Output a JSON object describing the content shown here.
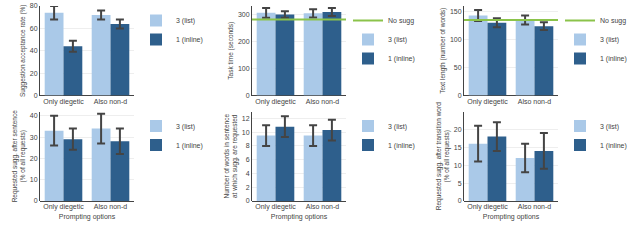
{
  "chart_data": [
    {
      "type": "bar",
      "ylabel": "Suggestion acceptance rate (%)",
      "categories": [
        "Only diegetic",
        "Also non-d"
      ],
      "series": [
        {
          "name": "3 (list)",
          "color": "#aac9e8",
          "values": [
            74,
            72
          ],
          "errors": [
            6,
            4
          ]
        },
        {
          "name": "1 (inline)",
          "color": "#2e5f8c",
          "values": [
            44,
            64
          ],
          "errors": [
            5,
            4
          ]
        }
      ],
      "ylim": [
        0,
        80
      ],
      "yticks": [
        0,
        20,
        40,
        60,
        80
      ],
      "grid": true,
      "legend": "right"
    },
    {
      "type": "bar",
      "ylabel": "Task time (seconds)",
      "categories": [
        "Only diegetic",
        "Also non-d"
      ],
      "series": [
        {
          "name": "No sugg",
          "type": "hline",
          "color": "#8bc34a",
          "value": 280
        },
        {
          "name": "3 (list)",
          "color": "#aac9e8",
          "values": [
            305,
            303
          ],
          "errors": [
            18,
            15
          ]
        },
        {
          "name": "1 (inline)",
          "color": "#2e5f8c",
          "values": [
            299,
            308
          ],
          "errors": [
            12,
            15
          ]
        }
      ],
      "ylim": [
        0,
        330
      ],
      "yticks": [
        0,
        100,
        200,
        300
      ],
      "grid": true,
      "legend": "right"
    },
    {
      "type": "bar",
      "ylabel": "Text length (number of words)",
      "categories": [
        "Only diegetic",
        "Also non-d"
      ],
      "series": [
        {
          "name": "No sugg",
          "type": "hline",
          "color": "#8bc34a",
          "value": 135
        },
        {
          "name": "3 (list)",
          "color": "#aac9e8",
          "values": [
            143,
            135
          ],
          "errors": [
            10,
            8
          ]
        },
        {
          "name": "1 (inline)",
          "color": "#2e5f8c",
          "values": [
            130,
            124
          ],
          "errors": [
            8,
            7
          ]
        }
      ],
      "ylim": [
        0,
        160
      ],
      "yticks": [
        0,
        50,
        100,
        150
      ],
      "grid": true,
      "legend": "right"
    },
    {
      "type": "bar",
      "ylabel": "Requested sugg. after sentence\n(% of all requests)",
      "xlabel": "Prompting options",
      "categories": [
        "Only diegetic",
        "Also non-d"
      ],
      "series": [
        {
          "name": "3 (list)",
          "color": "#aac9e8",
          "values": [
            33,
            34
          ],
          "errors": [
            7,
            7
          ]
        },
        {
          "name": "1 (inline)",
          "color": "#2e5f8c",
          "values": [
            29,
            28
          ],
          "errors": [
            5,
            6
          ]
        }
      ],
      "ylim": [
        0,
        42
      ],
      "yticks": [
        0,
        10,
        20,
        30,
        40
      ],
      "grid": true,
      "legend": "right"
    },
    {
      "type": "bar",
      "ylabel": "Number of words in sentence\nat which sugg. are requested",
      "xlabel": "Prompting options",
      "categories": [
        "Only diegetic",
        "Also non-d"
      ],
      "series": [
        {
          "name": "3 (list)",
          "color": "#aac9e8",
          "values": [
            9.5,
            9.5
          ],
          "errors": [
            1.5,
            1.5
          ]
        },
        {
          "name": "1 (inline)",
          "color": "#2e5f8c",
          "values": [
            10.8,
            10.3
          ],
          "errors": [
            1.5,
            1.5
          ]
        }
      ],
      "ylim": [
        0,
        13
      ],
      "yticks": [
        0,
        2,
        4,
        6,
        8,
        10,
        12
      ],
      "grid": true,
      "legend": "right"
    },
    {
      "type": "bar",
      "ylabel": "Requested sugg. after transition word\n(% of all requests)",
      "xlabel": "Prompting options",
      "categories": [
        "Only diegetic",
        "Also non-d"
      ],
      "series": [
        {
          "name": "3 (list)",
          "color": "#aac9e8",
          "values": [
            16,
            12
          ],
          "errors": [
            5,
            4
          ]
        },
        {
          "name": "1 (inline)",
          "color": "#2e5f8c",
          "values": [
            18,
            14
          ],
          "errors": [
            4,
            5
          ]
        }
      ],
      "ylim": [
        0,
        25
      ],
      "yticks": [
        0,
        5,
        10,
        15,
        20
      ],
      "grid": true,
      "legend": "right"
    }
  ]
}
